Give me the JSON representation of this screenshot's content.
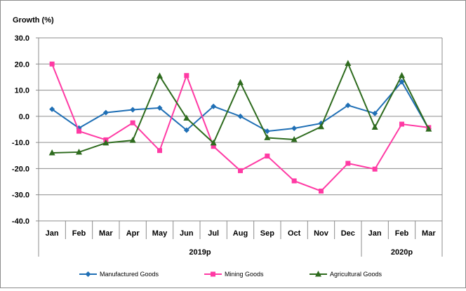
{
  "chart_data": {
    "type": "line",
    "ylabel": "Growth (%)",
    "ylim": [
      -40,
      30
    ],
    "ytick_step": 10,
    "ytick_labels": [
      "30.0",
      "20.0",
      "10.0",
      "0.0",
      "-10.0",
      "-20.0",
      "-30.0",
      "-40.0"
    ],
    "categories": [
      "Jan",
      "Feb",
      "Mar",
      "Apr",
      "May",
      "Jun",
      "Jul",
      "Aug",
      "Sep",
      "Oct",
      "Nov",
      "Dec",
      "Jan",
      "Feb",
      "Mar"
    ],
    "groups": [
      {
        "label": "2019p",
        "count": 12
      },
      {
        "label": "2020p",
        "count": 3
      }
    ],
    "grid": true,
    "legend_position": "bottom",
    "series": [
      {
        "name": "Manufactured Goods",
        "color": "#1f6fb5",
        "marker": "diamond",
        "values": [
          2.7,
          -4.5,
          1.4,
          2.5,
          3.2,
          -5.3,
          3.8,
          0.0,
          -5.7,
          -4.6,
          -2.7,
          4.2,
          1.1,
          13.2,
          -4.8
        ]
      },
      {
        "name": "Mining Goods",
        "color": "#ff3aa4",
        "marker": "square",
        "values": [
          20.0,
          -5.7,
          -9.0,
          -2.5,
          -13.1,
          15.6,
          -11.5,
          -20.8,
          -15.2,
          -24.7,
          -28.6,
          -18.0,
          -20.2,
          -3.0,
          -4.3
        ]
      },
      {
        "name": "Agricultural Goods",
        "color": "#2e6b1e",
        "marker": "triangle",
        "values": [
          -14.0,
          -13.7,
          -10.2,
          -9.2,
          15.4,
          -0.7,
          -10.2,
          12.9,
          -8.2,
          -8.9,
          -4.0,
          20.2,
          -4.2,
          15.6,
          -4.9
        ]
      }
    ]
  }
}
